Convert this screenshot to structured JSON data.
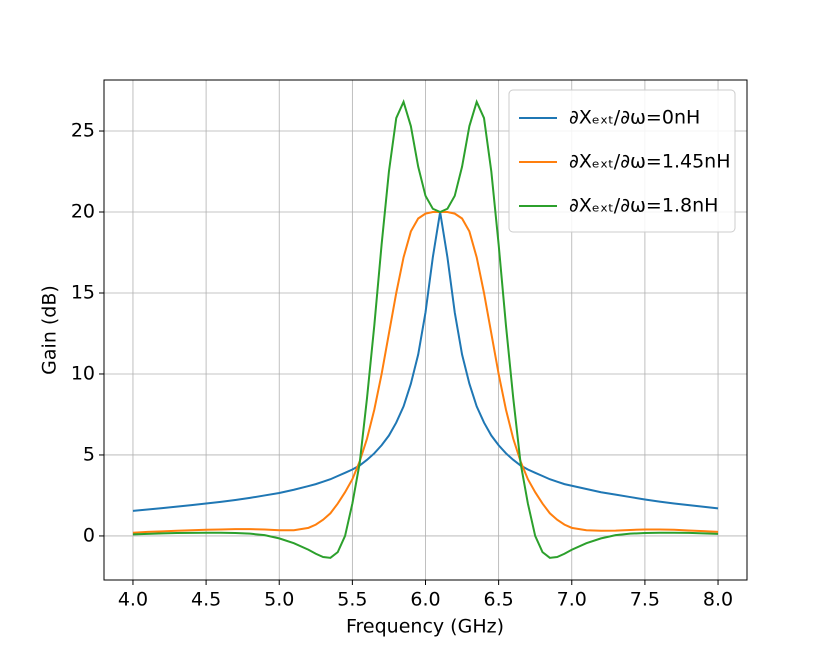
{
  "chart_data": {
    "type": "line",
    "x_label": "Frequency (GHz)",
    "y_label": "Gain (dB)",
    "x": [
      4.0,
      4.1,
      4.2,
      4.3,
      4.4,
      4.5,
      4.6,
      4.7,
      4.8,
      4.9,
      5.0,
      5.1,
      5.2,
      5.25,
      5.3,
      5.35,
      5.4,
      5.45,
      5.5,
      5.55,
      5.6,
      5.65,
      5.7,
      5.75,
      5.8,
      5.85,
      5.9,
      5.95,
      6.0,
      6.05,
      6.1,
      6.15,
      6.2,
      6.25,
      6.3,
      6.35,
      6.4,
      6.45,
      6.5,
      6.55,
      6.6,
      6.65,
      6.7,
      6.75,
      6.8,
      6.85,
      6.9,
      6.95,
      7.0,
      7.1,
      7.2,
      7.3,
      7.4,
      7.5,
      7.6,
      7.7,
      7.8,
      7.9,
      8.0
    ],
    "series": [
      {
        "name": "∂Xₑₓₜ/∂ω=0nH",
        "color": "#1f77b4",
        "values": [
          1.55,
          1.63,
          1.72,
          1.81,
          1.9,
          2.0,
          2.1,
          2.22,
          2.35,
          2.5,
          2.65,
          2.85,
          3.08,
          3.2,
          3.35,
          3.5,
          3.7,
          3.9,
          4.1,
          4.35,
          4.7,
          5.1,
          5.6,
          6.2,
          7.0,
          8.0,
          9.4,
          11.2,
          13.8,
          17.2,
          20,
          17.2,
          13.8,
          11.2,
          9.4,
          8.0,
          7.0,
          6.2,
          5.6,
          5.1,
          4.7,
          4.35,
          4.1,
          3.9,
          3.7,
          3.5,
          3.35,
          3.2,
          3.1,
          2.9,
          2.7,
          2.55,
          2.4,
          2.25,
          2.12,
          2.0,
          1.9,
          1.8,
          1.7
        ]
      },
      {
        "name": "∂Xₑₓₜ/∂ω=1.45nH",
        "color": "#ff7f0e",
        "values": [
          0.2,
          0.25,
          0.28,
          0.32,
          0.35,
          0.38,
          0.4,
          0.42,
          0.42,
          0.4,
          0.35,
          0.35,
          0.5,
          0.7,
          1.0,
          1.4,
          2.0,
          2.7,
          3.5,
          4.6,
          6.0,
          7.8,
          10.0,
          12.5,
          15.0,
          17.2,
          18.8,
          19.6,
          19.9,
          20,
          20,
          20,
          19.9,
          19.6,
          18.8,
          17.2,
          15.0,
          12.5,
          10.0,
          7.8,
          6.0,
          4.6,
          3.5,
          2.7,
          2.0,
          1.4,
          1.0,
          0.7,
          0.5,
          0.35,
          0.32,
          0.33,
          0.37,
          0.4,
          0.4,
          0.38,
          0.34,
          0.3,
          0.25
        ]
      },
      {
        "name": "∂Xₑₓₜ/∂ω=1.8nH",
        "color": "#2ca02c",
        "values": [
          0.1,
          0.13,
          0.16,
          0.18,
          0.19,
          0.2,
          0.2,
          0.18,
          0.14,
          0.05,
          -0.15,
          -0.45,
          -0.85,
          -1.1,
          -1.3,
          -1.35,
          -1.0,
          0.0,
          2.0,
          4.5,
          8.5,
          13.0,
          18.0,
          22.5,
          25.8,
          26.8,
          25.3,
          22.8,
          21.0,
          20.2,
          20.0,
          20.2,
          21.0,
          22.8,
          25.3,
          26.8,
          25.8,
          22.5,
          18.0,
          13.0,
          8.5,
          4.5,
          2.0,
          0.0,
          -1.0,
          -1.35,
          -1.3,
          -1.1,
          -0.85,
          -0.45,
          -0.15,
          0.05,
          0.14,
          0.18,
          0.2,
          0.2,
          0.19,
          0.16,
          0.13
        ]
      }
    ],
    "xlim": [
      3.802,
      8.198
    ],
    "ylim": [
      -2.72,
      28.15
    ],
    "xticks": [
      {
        "value": 4.0,
        "label": "4.0"
      },
      4.5,
      {
        "value": 5.0,
        "label": "5.0"
      },
      5.5,
      {
        "value": 6.0,
        "label": "6.0"
      },
      6.5,
      {
        "value": 7.0,
        "label": "7.0"
      },
      7.5,
      {
        "value": 8.0,
        "label": "8.0"
      }
    ],
    "yticks": [
      0,
      5,
      10,
      15,
      20,
      25
    ],
    "grid": true,
    "legend": "upper right"
  }
}
